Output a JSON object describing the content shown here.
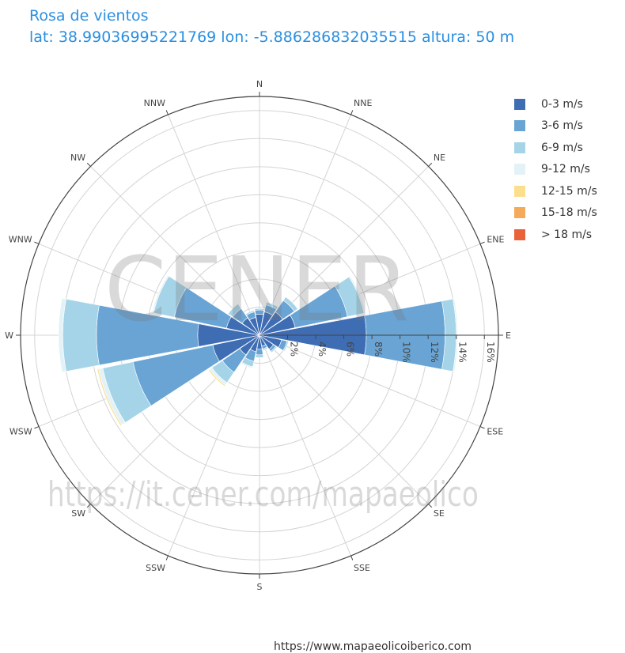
{
  "title": "Rosa de vientos",
  "subtitle": "lat: 38.99036995221769 lon: -5.886286832035515 altura: 50 m",
  "watermark": {
    "logo": "CENER",
    "url": "https://it.cener.com/mapaeolico"
  },
  "footer_link": "https://www.mapaeolicoiberico.com",
  "chart_data": {
    "type": "barpolar",
    "directions": [
      "N",
      "NNE",
      "NE",
      "ENE",
      "E",
      "ESE",
      "SE",
      "SSE",
      "S",
      "SSW",
      "SW",
      "WSW",
      "W",
      "WNW",
      "NW",
      "NNW"
    ],
    "radial_axis": {
      "range": [
        0,
        17
      ],
      "tick_values": [
        2,
        4,
        6,
        8,
        10,
        12,
        14,
        16
      ],
      "tick_labels": [
        "2%",
        "4%",
        "6%",
        "8%",
        "10%",
        "12%",
        "14%",
        "16%"
      ],
      "angle": "east"
    },
    "grid": true,
    "legend_position": "top-right",
    "series": [
      {
        "name": "0-3 m/s",
        "color": "#3f6db4",
        "values": [
          1.5,
          1.7,
          2.0,
          2.6,
          7.6,
          1.6,
          1.2,
          0.8,
          1.0,
          1.2,
          1.7,
          3.4,
          4.4,
          2.4,
          1.5,
          1.3
        ]
      },
      {
        "name": "3-6 m/s",
        "color": "#69a4d4",
        "values": [
          0.3,
          0.5,
          1.0,
          3.8,
          5.6,
          0.4,
          0.2,
          0.2,
          0.4,
          0.7,
          1.5,
          5.8,
          7.2,
          3.8,
          0.8,
          0.4
        ]
      },
      {
        "name": "6-9 m/s",
        "color": "#a5d4e8",
        "values": [
          0.1,
          0.2,
          0.3,
          1.2,
          0.8,
          0.1,
          0.1,
          0.1,
          0.2,
          0.4,
          0.9,
          2.2,
          2.4,
          1.5,
          0.4,
          0.1
        ]
      },
      {
        "name": "9-12 m/s",
        "color": "#e2f2f7",
        "values": [
          0,
          0,
          0,
          0.1,
          0.1,
          0,
          0,
          0,
          0,
          0.1,
          0.2,
          0.3,
          0.3,
          0.1,
          0,
          0
        ]
      },
      {
        "name": "12-15 m/s",
        "color": "#fbdf8e",
        "values": [
          0,
          0,
          0,
          0,
          0,
          0,
          0,
          0,
          0,
          0,
          0.1,
          0.1,
          0,
          0,
          0,
          0
        ]
      },
      {
        "name": "15-18 m/s",
        "color": "#f5a95a",
        "values": [
          0,
          0,
          0,
          0,
          0,
          0,
          0,
          0,
          0,
          0,
          0,
          0,
          0,
          0,
          0,
          0
        ]
      },
      {
        "name": "> 18 m/s",
        "color": "#e8633a",
        "values": [
          0,
          0,
          0,
          0,
          0,
          0,
          0,
          0,
          0,
          0,
          0,
          0,
          0,
          0,
          0,
          0
        ]
      }
    ]
  }
}
